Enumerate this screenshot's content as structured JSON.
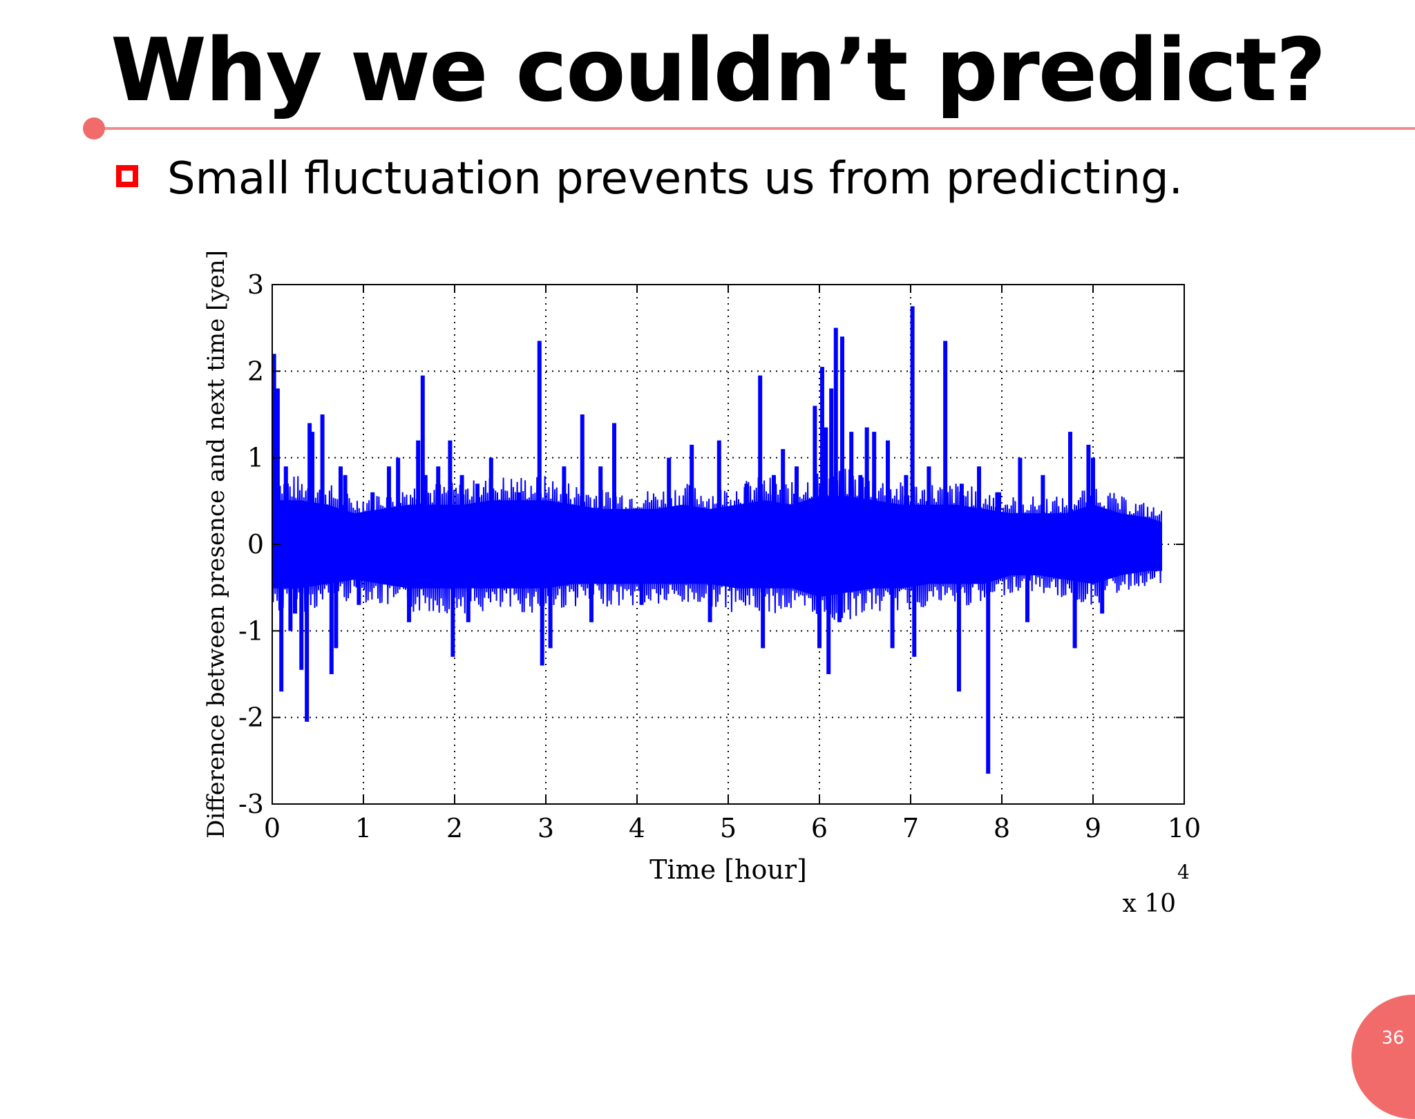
{
  "slide": {
    "title": "Why we couldn’t predict?",
    "bullet": "Small fluctuation prevents us from predicting.",
    "page_number": "36",
    "accent_color": "#f26b6b",
    "bullet_color": "#ff0000"
  },
  "chart_data": {
    "type": "line",
    "title": "",
    "xlabel": "Time [hour]",
    "ylabel": "Difference between presence and next time [yen]",
    "x_multiplier_base": "x 10",
    "x_multiplier_exp": "4",
    "xlim": [
      0,
      10
    ],
    "ylim": [
      -3,
      3
    ],
    "x_ticks": [
      "0",
      "1",
      "2",
      "3",
      "4",
      "5",
      "6",
      "7",
      "8",
      "9",
      "10"
    ],
    "y_ticks": [
      "-3",
      "-2",
      "-1",
      "0",
      "1",
      "2",
      "3"
    ],
    "grid": true,
    "series_color": "#0000ff",
    "series": [
      {
        "band": {
          "x": [
            0,
            0.3,
            0.6,
            0.9,
            1.2,
            1.5,
            1.8,
            2.1,
            2.4,
            2.7,
            3.0,
            3.3,
            3.6,
            3.9,
            4.2,
            4.5,
            4.8,
            5.1,
            5.4,
            5.7,
            6.0,
            6.3,
            6.6,
            6.9,
            7.2,
            7.5,
            7.8,
            8.1,
            8.4,
            8.7,
            9.0,
            9.3,
            9.6,
            9.75
          ],
          "upper": [
            0.5,
            0.5,
            0.45,
            0.35,
            0.4,
            0.45,
            0.45,
            0.45,
            0.5,
            0.5,
            0.5,
            0.45,
            0.4,
            0.4,
            0.4,
            0.45,
            0.4,
            0.45,
            0.5,
            0.45,
            0.55,
            0.55,
            0.5,
            0.45,
            0.45,
            0.45,
            0.4,
            0.35,
            0.35,
            0.35,
            0.45,
            0.35,
            0.3,
            0.25
          ],
          "lower": [
            -0.5,
            -0.5,
            -0.45,
            -0.4,
            -0.45,
            -0.5,
            -0.5,
            -0.5,
            -0.5,
            -0.5,
            -0.5,
            -0.45,
            -0.45,
            -0.45,
            -0.45,
            -0.45,
            -0.45,
            -0.5,
            -0.5,
            -0.5,
            -0.6,
            -0.55,
            -0.5,
            -0.5,
            -0.45,
            -0.45,
            -0.45,
            -0.35,
            -0.35,
            -0.4,
            -0.45,
            -0.35,
            -0.3,
            -0.3
          ]
        },
        "spikes": {
          "x": [
            0.02,
            0.06,
            0.1,
            0.15,
            0.2,
            0.25,
            0.32,
            0.38,
            0.41,
            0.44,
            0.55,
            0.65,
            0.7,
            0.75,
            0.8,
            0.95,
            1.1,
            1.28,
            1.38,
            1.5,
            1.6,
            1.65,
            1.68,
            1.82,
            1.95,
            1.98,
            2.08,
            2.15,
            2.25,
            2.4,
            2.7,
            2.93,
            2.96,
            3.05,
            3.2,
            3.4,
            3.5,
            3.6,
            3.75,
            4.05,
            4.35,
            4.6,
            4.8,
            4.9,
            5.2,
            5.35,
            5.38,
            5.5,
            5.6,
            5.75,
            5.95,
            6.0,
            6.03,
            6.07,
            6.1,
            6.13,
            6.18,
            6.22,
            6.25,
            6.35,
            6.45,
            6.52,
            6.6,
            6.75,
            6.8,
            6.95,
            7.02,
            7.04,
            7.2,
            7.38,
            7.53,
            7.56,
            7.75,
            7.85,
            7.95,
            7.97,
            8.2,
            8.28,
            8.45,
            8.75,
            8.8,
            8.95,
            9.0,
            9.1
          ],
          "y": [
            2.2,
            1.8,
            -1.7,
            0.9,
            -1.0,
            -0.8,
            -1.45,
            -2.05,
            1.4,
            1.3,
            1.5,
            -1.5,
            -1.2,
            0.9,
            0.8,
            -0.7,
            0.6,
            0.9,
            1.0,
            -0.9,
            1.2,
            1.95,
            0.8,
            0.9,
            1.2,
            -1.3,
            0.8,
            -0.9,
            0.7,
            1.0,
            0.6,
            2.35,
            -1.4,
            -1.2,
            0.9,
            1.5,
            -0.9,
            0.9,
            1.4,
            -0.7,
            1.0,
            1.15,
            -0.9,
            1.2,
            0.7,
            1.95,
            -1.2,
            0.8,
            1.1,
            0.9,
            1.6,
            -1.2,
            2.05,
            1.35,
            -1.5,
            1.8,
            2.5,
            -0.9,
            2.4,
            1.3,
            0.8,
            1.35,
            1.3,
            1.2,
            -1.2,
            0.8,
            2.75,
            -1.3,
            0.9,
            2.35,
            -1.7,
            0.7,
            0.9,
            -2.65,
            0.6,
            0.6,
            1.0,
            -0.9,
            0.8,
            1.3,
            -1.2,
            1.15,
            1.0,
            -0.8
          ]
        }
      }
    ]
  }
}
